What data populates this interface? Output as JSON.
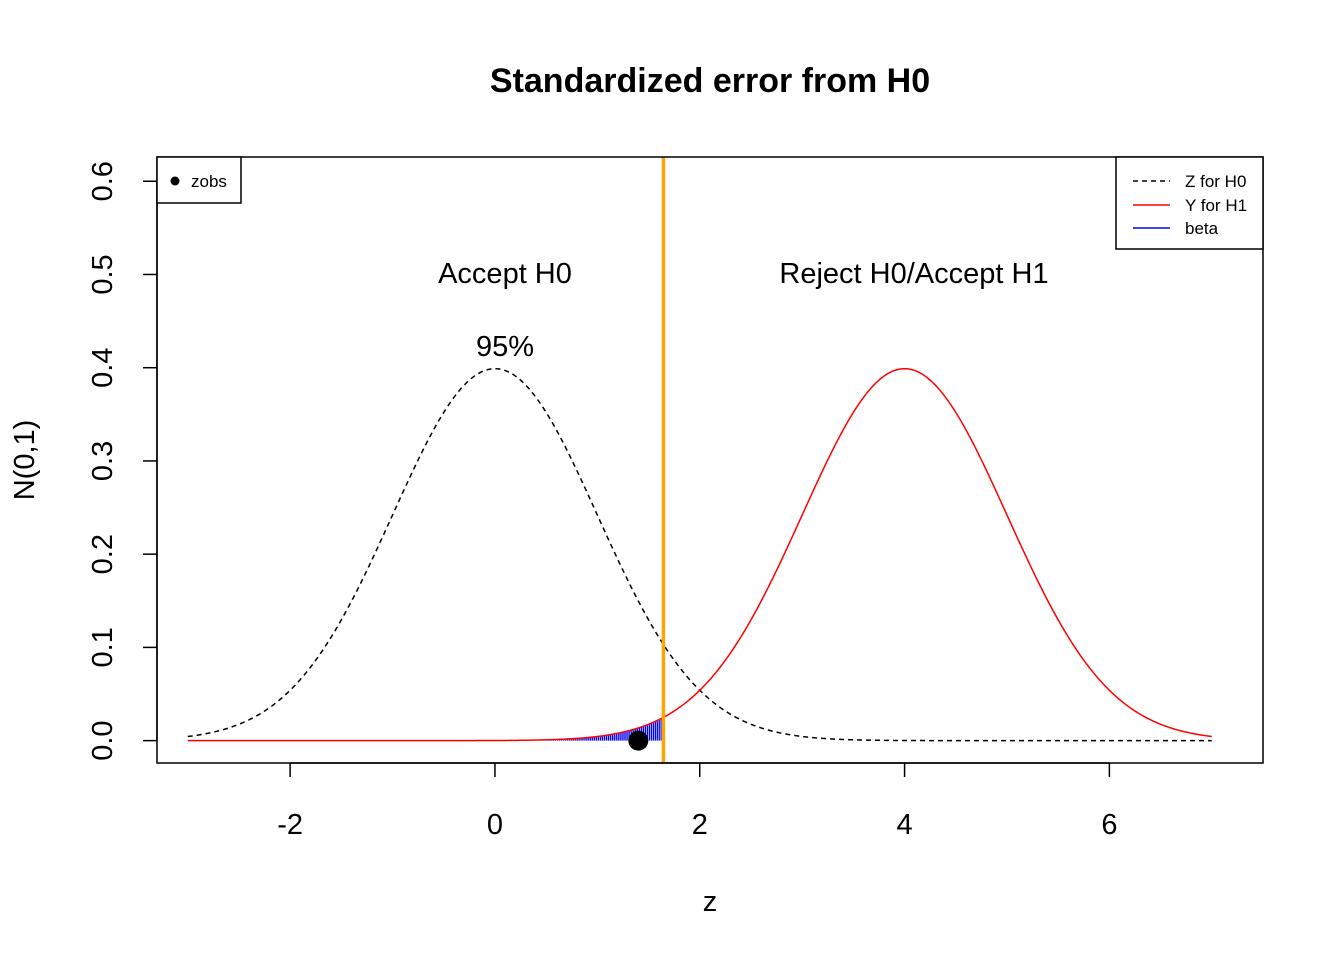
{
  "chart_data": {
    "type": "line",
    "title": "Standardized error from H0",
    "xlabel": "z",
    "ylabel": "N(0,1)",
    "xlim": [
      -3.3,
      7.5
    ],
    "ylim": [
      -0.024,
      0.626
    ],
    "xticks": [
      -2,
      0,
      2,
      4,
      6
    ],
    "yticks": [
      0.0,
      0.1,
      0.2,
      0.3,
      0.4,
      0.5,
      0.6
    ],
    "ytick_labels": [
      "0.0",
      "0.1",
      "0.2",
      "0.3",
      "0.4",
      "0.5",
      "0.6"
    ],
    "xtick_labels": [
      "-2",
      "0",
      "2",
      "4",
      "6"
    ],
    "grid": false,
    "series": [
      {
        "name": "Z for H0",
        "distribution": "normal",
        "mean": 0,
        "sd": 1,
        "x_range": [
          -3,
          7
        ],
        "color": "#000000",
        "style": "dashed"
      },
      {
        "name": "Y for H1",
        "distribution": "normal",
        "mean": 4,
        "sd": 1,
        "x_range": [
          -3,
          7
        ],
        "color": "#ff0000",
        "style": "solid"
      },
      {
        "name": "beta",
        "shaded_under": "Y for H1",
        "x_range": [
          0.45,
          1.645
        ],
        "color": "#0000ff",
        "style": "hatched"
      }
    ],
    "critical_value": {
      "x": 1.645,
      "color": "#ffa500"
    },
    "points": [
      {
        "name": "zobs",
        "x": 1.4,
        "y": 0.0
      }
    ],
    "annotations": [
      {
        "text": "Accept H0",
        "x": 0,
        "y": 0.5
      },
      {
        "text": "95%",
        "x": 0,
        "y": 0.42
      },
      {
        "text": "Reject H0/Accept H1",
        "x": 4,
        "y": 0.5
      }
    ],
    "legends": [
      {
        "position": "top-left",
        "entries": [
          {
            "label": "zobs",
            "symbol": "dot",
            "color": "#000000"
          }
        ]
      },
      {
        "position": "top-right",
        "entries": [
          {
            "label": "Z for H0",
            "symbol": "dashed-line",
            "color": "#000000"
          },
          {
            "label": "Y for H1",
            "symbol": "line",
            "color": "#ff0000"
          },
          {
            "label": "beta",
            "symbol": "line",
            "color": "#0000ff"
          }
        ]
      }
    ]
  }
}
